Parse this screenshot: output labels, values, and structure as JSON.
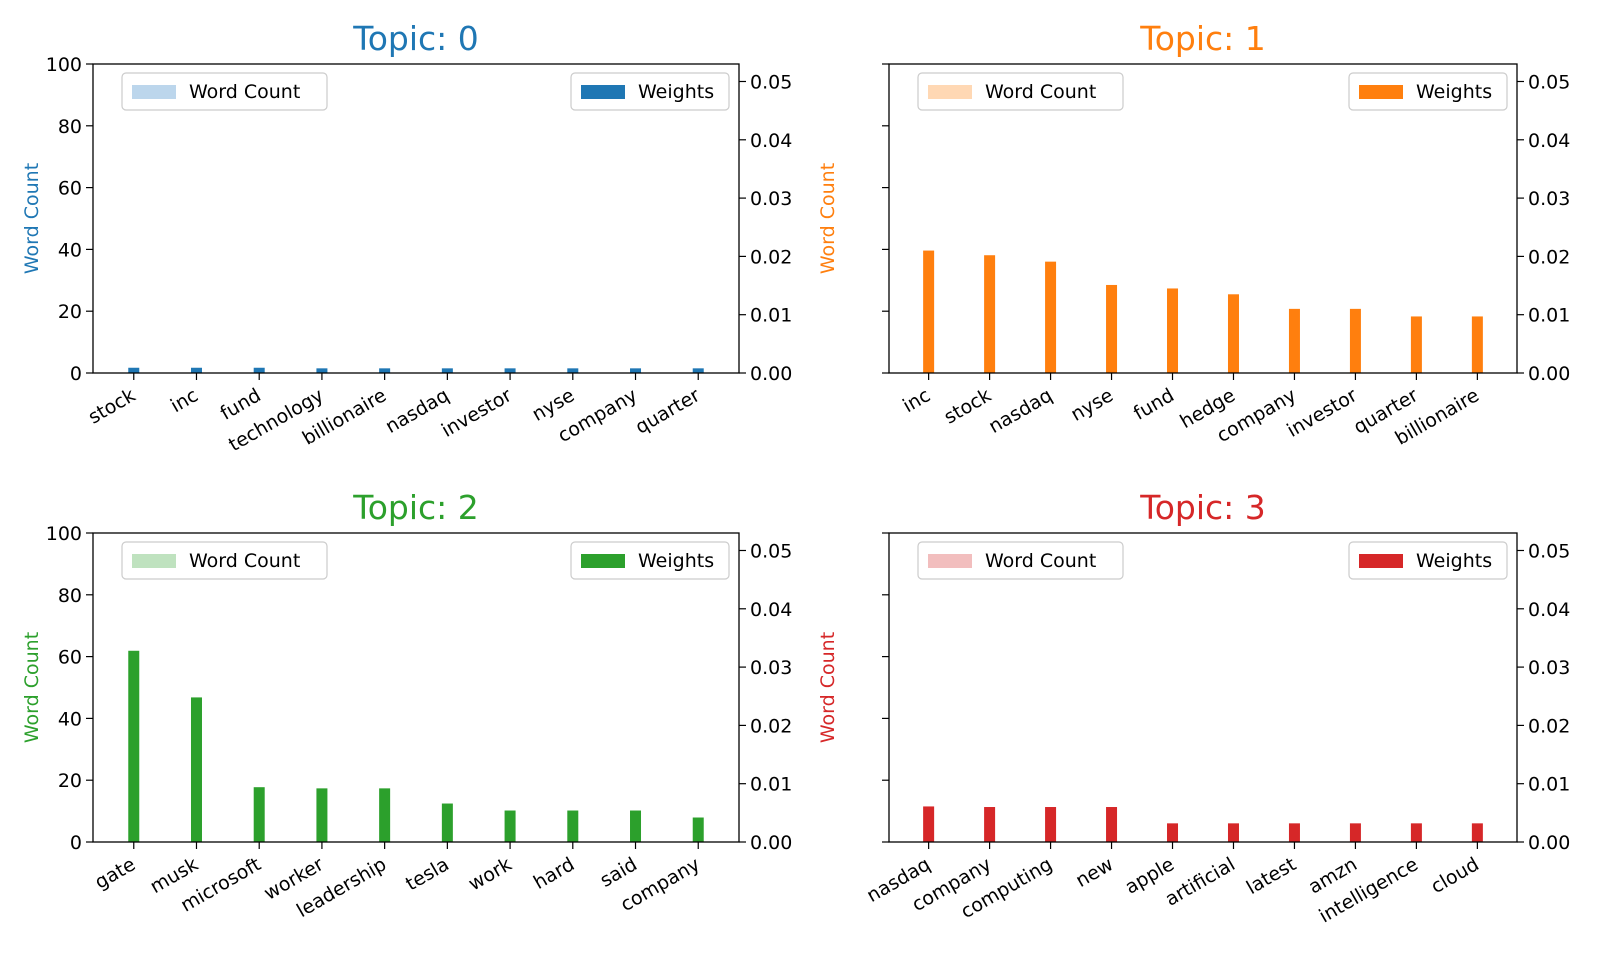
{
  "chart_data": [
    {
      "type": "bar",
      "title": "Topic: 0",
      "color": "#1f77b4",
      "light_color": "#bcd6ec",
      "ylabel": "Word Count",
      "ylim": [
        0,
        100
      ],
      "ylim_right": [
        0,
        0.053
      ],
      "left_ticks": [
        "0",
        "20",
        "40",
        "60",
        "80",
        "100"
      ],
      "left_tick_values": [
        0,
        20,
        40,
        60,
        80,
        100
      ],
      "right_ticks": [
        "0.00",
        "0.01",
        "0.02",
        "0.03",
        "0.04",
        "0.05"
      ],
      "right_tick_values": [
        0,
        0.01,
        0.02,
        0.03,
        0.04,
        0.05
      ],
      "show_left_tick_labels": true,
      "legend_left": "Word Count",
      "legend_right": "Weights",
      "categories": [
        "stock",
        "inc",
        "fund",
        "technology",
        "billionaire",
        "nasdaq",
        "investor",
        "nyse",
        "company",
        "quarter"
      ],
      "series": [
        {
          "name": "Word Count",
          "axis": "left",
          "values": [
            0,
            0,
            0,
            0,
            0,
            0,
            0,
            0,
            0,
            0
          ]
        },
        {
          "name": "Weights",
          "axis": "right",
          "values": [
            0.0009,
            0.0009,
            0.0009,
            0.0008,
            0.0008,
            0.0008,
            0.0008,
            0.0008,
            0.0008,
            0.0008
          ]
        }
      ]
    },
    {
      "type": "bar",
      "title": "Topic: 1",
      "color": "#ff7f0e",
      "light_color": "#ffd8b4",
      "ylabel": "Word Count",
      "ylim": [
        0,
        100
      ],
      "ylim_right": [
        0,
        0.053
      ],
      "left_ticks": [
        "0",
        "20",
        "40",
        "60",
        "80",
        "100"
      ],
      "left_tick_values": [
        0,
        20,
        40,
        60,
        80,
        100
      ],
      "right_ticks": [
        "0.00",
        "0.01",
        "0.02",
        "0.03",
        "0.04",
        "0.05"
      ],
      "right_tick_values": [
        0,
        0.01,
        0.02,
        0.03,
        0.04,
        0.05
      ],
      "show_left_tick_labels": false,
      "legend_left": "Word Count",
      "legend_right": "Weights",
      "categories": [
        "inc",
        "stock",
        "nasdaq",
        "nyse",
        "fund",
        "hedge",
        "company",
        "investor",
        "quarter",
        "billionaire"
      ],
      "series": [
        {
          "name": "Word Count",
          "axis": "left",
          "values": [
            0,
            0,
            0,
            0,
            0,
            0,
            0,
            0,
            0,
            0
          ]
        },
        {
          "name": "Weights",
          "axis": "right",
          "values": [
            0.021,
            0.0202,
            0.0191,
            0.0151,
            0.0145,
            0.0135,
            0.011,
            0.011,
            0.0097,
            0.0097
          ]
        }
      ]
    },
    {
      "type": "bar",
      "title": "Topic: 2",
      "color": "#2ca02c",
      "light_color": "#bfe2bf",
      "ylabel": "Word Count",
      "ylim": [
        0,
        100
      ],
      "ylim_right": [
        0,
        0.053
      ],
      "left_ticks": [
        "0",
        "20",
        "40",
        "60",
        "80",
        "100"
      ],
      "left_tick_values": [
        0,
        20,
        40,
        60,
        80,
        100
      ],
      "right_ticks": [
        "0.00",
        "0.01",
        "0.02",
        "0.03",
        "0.04",
        "0.05"
      ],
      "right_tick_values": [
        0,
        0.01,
        0.02,
        0.03,
        0.04,
        0.05
      ],
      "show_left_tick_labels": true,
      "legend_left": "Word Count",
      "legend_right": "Weights",
      "categories": [
        "gate",
        "musk",
        "microsoft",
        "worker",
        "leadership",
        "tesla",
        "work",
        "hard",
        "said",
        "company"
      ],
      "series": [
        {
          "name": "Word Count",
          "axis": "left",
          "values": [
            0,
            0,
            0,
            0,
            0,
            0,
            0,
            0,
            0,
            0
          ]
        },
        {
          "name": "Weights",
          "axis": "right",
          "values": [
            0.0328,
            0.0248,
            0.0094,
            0.0092,
            0.0092,
            0.0066,
            0.0054,
            0.0054,
            0.0054,
            0.0042
          ]
        }
      ]
    },
    {
      "type": "bar",
      "title": "Topic: 3",
      "color": "#d62728",
      "light_color": "#f2bebe",
      "ylabel": "Word Count",
      "ylim": [
        0,
        100
      ],
      "ylim_right": [
        0,
        0.053
      ],
      "left_ticks": [
        "0",
        "20",
        "40",
        "60",
        "80",
        "100"
      ],
      "left_tick_values": [
        0,
        20,
        40,
        60,
        80,
        100
      ],
      "right_ticks": [
        "0.00",
        "0.01",
        "0.02",
        "0.03",
        "0.04",
        "0.05"
      ],
      "right_tick_values": [
        0,
        0.01,
        0.02,
        0.03,
        0.04,
        0.05
      ],
      "show_left_tick_labels": false,
      "legend_left": "Word Count",
      "legend_right": "Weights",
      "categories": [
        "nasdaq",
        "company",
        "computing",
        "new",
        "apple",
        "artificial",
        "latest",
        "amzn",
        "intelligence",
        "cloud"
      ],
      "series": [
        {
          "name": "Word Count",
          "axis": "left",
          "values": [
            0,
            0,
            0,
            0,
            0,
            0,
            0,
            0,
            0,
            0
          ]
        },
        {
          "name": "Weights",
          "axis": "right",
          "values": [
            0.0061,
            0.006,
            0.006,
            0.006,
            0.0032,
            0.0032,
            0.0032,
            0.0032,
            0.0032,
            0.0032
          ]
        }
      ]
    }
  ]
}
